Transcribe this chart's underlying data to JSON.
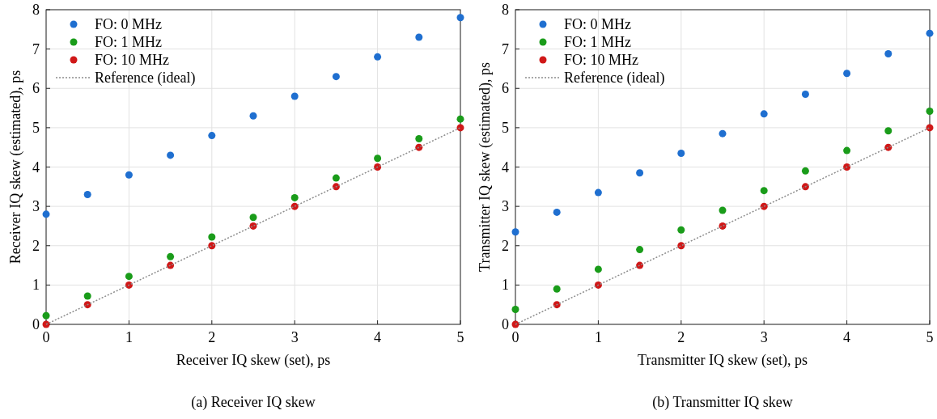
{
  "chart_data": [
    {
      "type": "scatter",
      "title": "(a) Receiver IQ skew",
      "xlabel": "Receiver IQ skew (set), ps",
      "ylabel": "Receiver IQ skew (estimated), ps",
      "xlim": [
        0,
        5
      ],
      "ylim": [
        0,
        8
      ],
      "xticks": [
        0,
        1,
        2,
        3,
        4,
        5
      ],
      "yticks": [
        0,
        1,
        2,
        3,
        4,
        5,
        6,
        7,
        8
      ],
      "grid": true,
      "legend": "top left",
      "marker": "circle",
      "x": [
        0,
        0.5,
        1,
        1.5,
        2,
        2.5,
        3,
        3.5,
        4,
        4.5,
        5
      ],
      "series": [
        {
          "name": "FO: 0 MHz",
          "color": "#1f6fd0",
          "values": [
            2.8,
            3.3,
            3.8,
            4.3,
            4.8,
            5.3,
            5.8,
            6.3,
            6.8,
            7.3,
            7.8
          ]
        },
        {
          "name": "FO: 1 MHz",
          "color": "#1a9c1a",
          "values": [
            0.22,
            0.72,
            1.22,
            1.72,
            2.22,
            2.72,
            3.22,
            3.72,
            4.22,
            4.72,
            5.22
          ]
        },
        {
          "name": "FO: 10 MHz",
          "color": "#d01818",
          "values": [
            0,
            0.5,
            1,
            1.5,
            2,
            2.5,
            3,
            3.5,
            4,
            4.5,
            5
          ]
        },
        {
          "name": "Reference (ideal)",
          "type": "line",
          "color": "#8c8c8c",
          "marker": "none",
          "line_style": "dotted",
          "values": [
            0,
            0.5,
            1,
            1.5,
            2,
            2.5,
            3,
            3.5,
            4,
            4.5,
            5
          ]
        }
      ]
    },
    {
      "type": "scatter",
      "title": "(b) Transmitter IQ skew",
      "xlabel": "Transmitter IQ skew (set), ps",
      "ylabel": "Transmitter IQ skew (estimated), ps",
      "xlim": [
        0,
        5
      ],
      "ylim": [
        0,
        8
      ],
      "xticks": [
        0,
        1,
        2,
        3,
        4,
        5
      ],
      "yticks": [
        0,
        1,
        2,
        3,
        4,
        5,
        6,
        7,
        8
      ],
      "grid": true,
      "legend": "top left",
      "marker": "circle",
      "x": [
        0,
        0.5,
        1,
        1.5,
        2,
        2.5,
        3,
        3.5,
        4,
        4.5,
        5
      ],
      "series": [
        {
          "name": "FO: 0 MHz",
          "color": "#1f6fd0",
          "values": [
            2.35,
            2.85,
            3.35,
            3.85,
            4.35,
            4.85,
            5.35,
            5.85,
            6.38,
            6.88,
            7.4
          ]
        },
        {
          "name": "FO: 1 MHz",
          "color": "#1a9c1a",
          "values": [
            0.38,
            0.9,
            1.4,
            1.9,
            2.4,
            2.9,
            3.4,
            3.9,
            4.42,
            4.92,
            5.42
          ]
        },
        {
          "name": "FO: 10 MHz",
          "color": "#d01818",
          "values": [
            0,
            0.5,
            1,
            1.5,
            2,
            2.5,
            3,
            3.5,
            4,
            4.5,
            5
          ]
        },
        {
          "name": "Reference (ideal)",
          "type": "line",
          "color": "#8c8c8c",
          "marker": "none",
          "line_style": "dotted",
          "values": [
            0,
            0.5,
            1,
            1.5,
            2,
            2.5,
            3,
            3.5,
            4,
            4.5,
            5
          ]
        }
      ]
    }
  ]
}
